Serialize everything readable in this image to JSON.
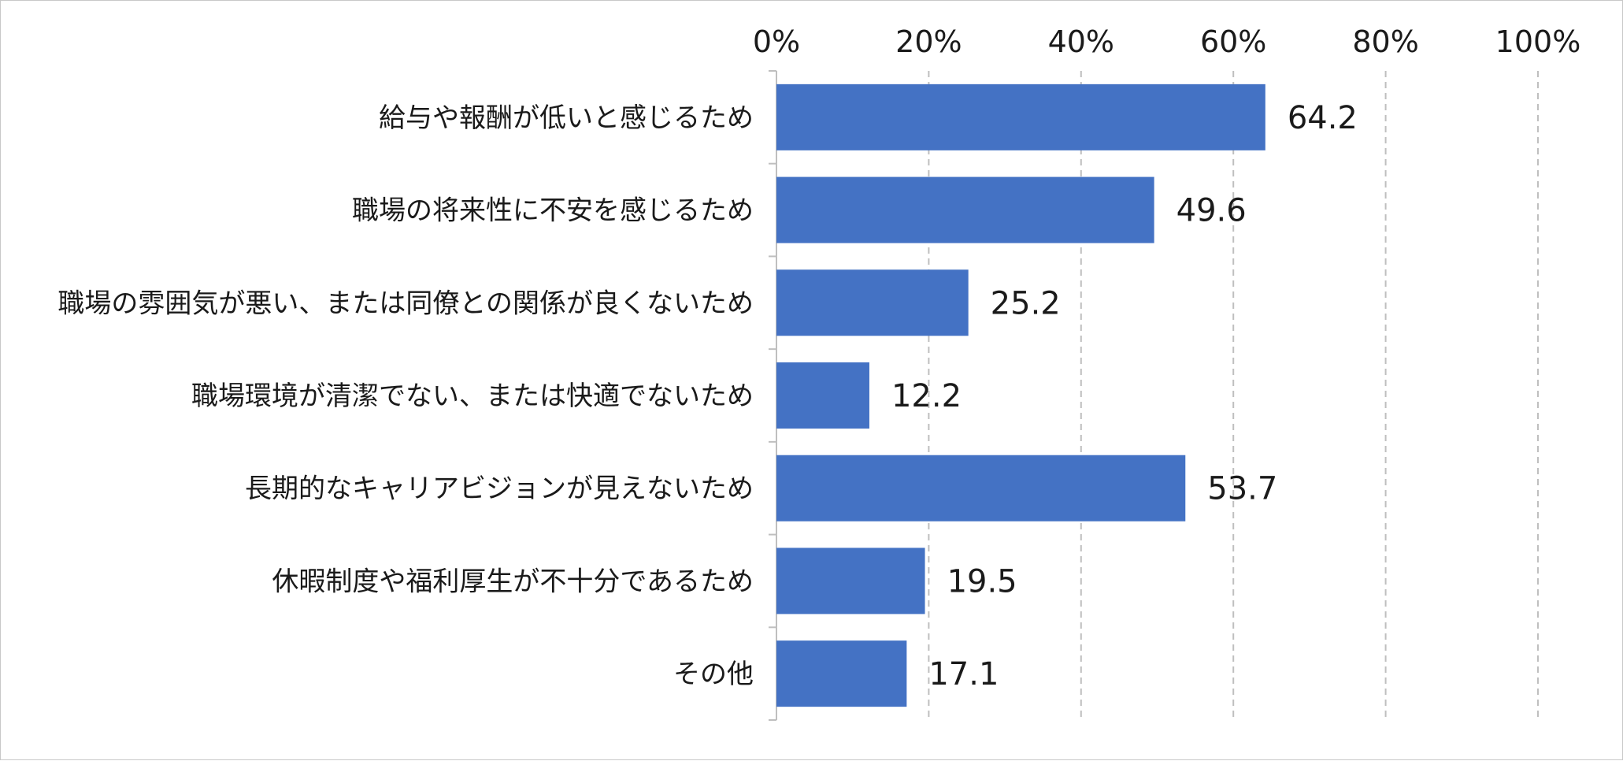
{
  "chart_data": {
    "type": "bar",
    "orientation": "horizontal",
    "categories": [
      "給与や報酬が低いと感じるため",
      "職場の将来性に不安を感じるため",
      "職場の雰囲気が悪い、または同僚との関係が良くないため",
      "職場環境が清潔でない、または快適でないため",
      "長期的なキャリアビジョンが見えないため",
      "休暇制度や福利厚生が不十分であるため",
      "その他"
    ],
    "values": [
      64.2,
      49.6,
      25.2,
      12.2,
      53.7,
      19.5,
      17.1
    ],
    "value_labels": [
      "64.2",
      "49.6",
      "25.2",
      "12.2",
      "53.7",
      "19.5",
      "17.1"
    ],
    "x_ticks": [
      "0%",
      "20%",
      "40%",
      "60%",
      "80%",
      "100%"
    ],
    "xlim": [
      0,
      100
    ],
    "axis_position": "top",
    "grid": "vertical dashed",
    "bar_color": "#4472C4",
    "grid_color": "#bfbfbf",
    "title": "",
    "xlabel": "",
    "ylabel": ""
  }
}
